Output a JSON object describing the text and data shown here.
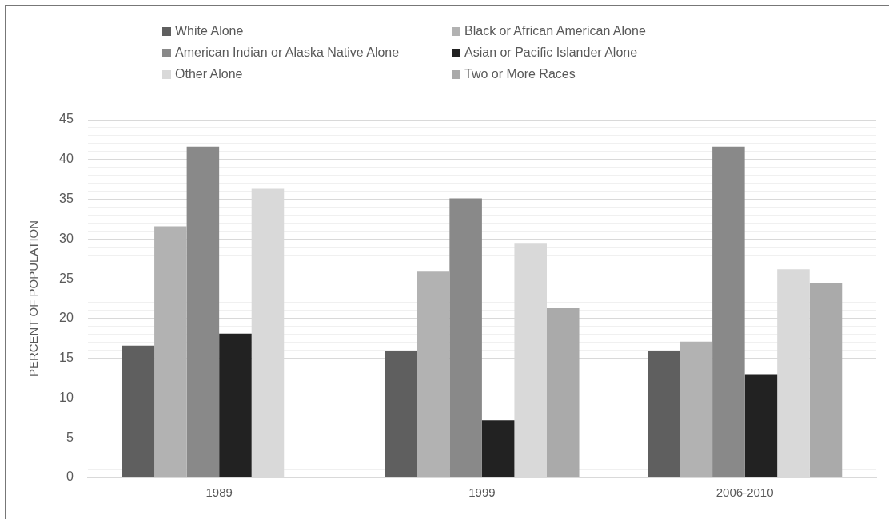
{
  "chart_data": {
    "type": "bar",
    "ylabel": "PERCENT OF POPULATION",
    "categories": [
      "1989",
      "1999",
      "2006-2010"
    ],
    "series": [
      {
        "name": "White Alone",
        "color": "#5f5f5f",
        "values": [
          16.6,
          15.9,
          15.9
        ]
      },
      {
        "name": "Black or African American Alone",
        "color": "#b2b2b2",
        "values": [
          31.6,
          25.9,
          17.1
        ]
      },
      {
        "name": "American Indian or Alaska Native Alone",
        "color": "#898989",
        "values": [
          41.6,
          35.1,
          41.6
        ]
      },
      {
        "name": "Asian or Pacific Islander Alone",
        "color": "#222222",
        "values": [
          18.1,
          7.2,
          12.9
        ]
      },
      {
        "name": "Other Alone",
        "color": "#d9d9d9",
        "values": [
          36.3,
          29.5,
          26.2
        ]
      },
      {
        "name": "Two or More Races",
        "color": "#aaaaaa",
        "values": [
          null,
          21.3,
          24.4
        ]
      }
    ],
    "ylim": [
      0,
      45
    ],
    "yticks": [
      0,
      {
        "value": 1,
        "label": null
      },
      {
        "value": 2,
        "label": null
      },
      {
        "value": 3,
        "label": null
      },
      {
        "value": 4,
        "label": null
      },
      5,
      {
        "value": 6,
        "label": null
      },
      {
        "value": 7,
        "label": null
      },
      {
        "value": 8,
        "label": null
      },
      {
        "value": 9,
        "label": null
      },
      10,
      {
        "value": 11,
        "label": null
      },
      {
        "value": 12,
        "label": null
      },
      {
        "value": 13,
        "label": null
      },
      {
        "value": 14,
        "label": null
      },
      15,
      {
        "value": 16,
        "label": null
      },
      {
        "value": 17,
        "label": null
      },
      {
        "value": 18,
        "label": null
      },
      {
        "value": 19,
        "label": null
      },
      20,
      {
        "value": 21,
        "label": null
      },
      {
        "value": 22,
        "label": null
      },
      {
        "value": 23,
        "label": null
      },
      {
        "value": 24,
        "label": null
      },
      25,
      {
        "value": 26,
        "label": null
      },
      {
        "value": 27,
        "label": null
      },
      {
        "value": 28,
        "label": null
      },
      {
        "value": 29,
        "label": null
      },
      30,
      {
        "value": 31,
        "label": null
      },
      {
        "value": 32,
        "label": null
      },
      {
        "value": 33,
        "label": null
      },
      {
        "value": 34,
        "label": null
      },
      35,
      {
        "value": 36,
        "label": null
      },
      {
        "value": 37,
        "label": null
      },
      {
        "value": 38,
        "label": null
      },
      {
        "value": 39,
        "label": null
      },
      40,
      {
        "value": 41,
        "label": null
      },
      {
        "value": 42,
        "label": null
      },
      {
        "value": 43,
        "label": null
      },
      {
        "value": 44,
        "label": null
      },
      45
    ],
    "grid": "y",
    "legend": "top"
  }
}
